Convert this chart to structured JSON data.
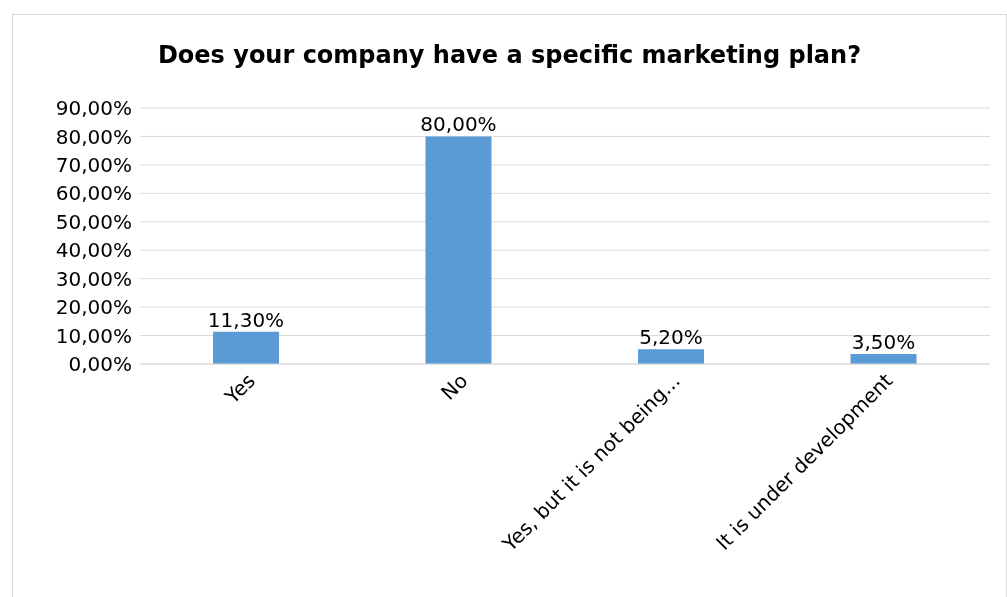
{
  "chart_data": {
    "type": "bar",
    "title": "Does your company have a specific marketing plan?",
    "categories": [
      "Yes",
      "No",
      "Yes, but it is not being...",
      "It is under development"
    ],
    "values": [
      11.3,
      80,
      5.2,
      3.5
    ],
    "value_labels": [
      "11,30%",
      "80,00%",
      "5,20%",
      "3,50%"
    ],
    "color": "#5b9bd5",
    "ylim": [
      0,
      90
    ],
    "yticks": [
      {
        "value": 0,
        "label": "0,00%"
      },
      {
        "value": 10,
        "label": "10,00%"
      },
      {
        "value": 20,
        "label": "20,00%"
      },
      {
        "value": 30,
        "label": "30,00%"
      },
      {
        "value": 40,
        "label": "40,00%"
      },
      {
        "value": 50,
        "label": "50,00%"
      },
      {
        "value": 60,
        "label": "60,00%"
      },
      {
        "value": 70,
        "label": "70,00%"
      },
      {
        "value": 80,
        "label": "80,00%"
      },
      {
        "value": 90,
        "label": "90,00%"
      }
    ],
    "grid": "y",
    "legend": false
  }
}
